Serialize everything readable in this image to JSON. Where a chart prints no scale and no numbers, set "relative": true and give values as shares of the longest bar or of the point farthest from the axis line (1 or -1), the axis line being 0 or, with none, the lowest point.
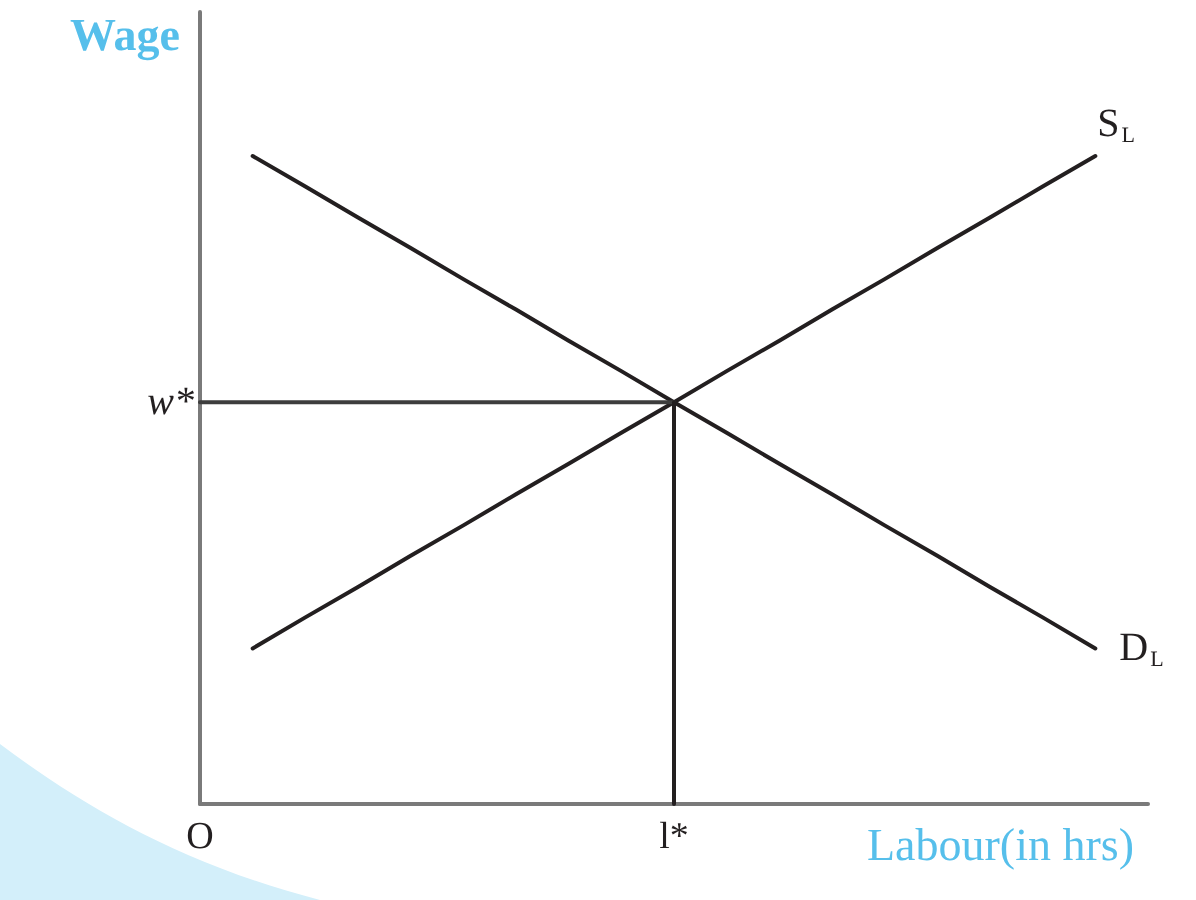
{
  "chart_data": {
    "type": "line",
    "relative": true,
    "xlabel": "Labour(in hrs)",
    "ylabel": "Wage",
    "categories": [
      "O",
      null,
      null,
      null,
      null,
      null,
      null,
      null,
      null,
      "l*",
      null,
      null,
      null,
      null,
      null,
      null,
      null,
      null,
      null
    ],
    "series": [
      {
        "name": "S$_{L}$",
        "color": "#231f20",
        "values": [
          null,
          0.24,
          0.288,
          0.335,
          0.383,
          0.43,
          0.478,
          0.525,
          0.573,
          0.62,
          0.668,
          0.715,
          0.763,
          0.81,
          0.858,
          0.905,
          0.953,
          1,
          null
        ]
      },
      {
        "name": "D$_{L}$",
        "color": "#231f20",
        "values": [
          null,
          1,
          0.953,
          0.905,
          0.858,
          0.81,
          0.763,
          0.715,
          0.668,
          0.62,
          0.573,
          0.525,
          0.478,
          0.43,
          0.383,
          0.335,
          0.288,
          0.24,
          null
        ]
      },
      {
        "color": "#3d3d3d",
        "values": [
          0.62,
          0.62,
          0.62,
          0.62,
          0.62,
          0.62,
          0.62,
          0.62,
          0.62,
          0.62,
          null,
          null,
          null,
          null,
          null,
          null,
          null,
          null,
          null
        ]
      },
      {
        "color": "#231f20",
        "x": [
          "l*",
          "l*"
        ],
        "values": [
          0,
          0.62
        ]
      }
    ],
    "annotations": [
      "w*"
    ]
  }
}
